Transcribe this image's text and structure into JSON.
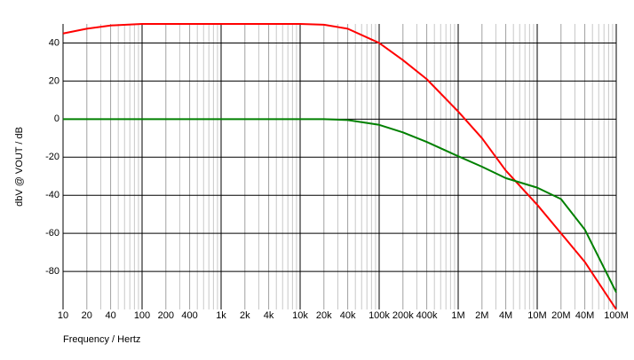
{
  "chart_data": {
    "type": "line",
    "ylabel": "dbV @ VOUT / dB",
    "xlabel": "Frequency / Hertz",
    "xscale": "log",
    "grid": true,
    "xlim": [
      10,
      100000000
    ],
    "ylim": [
      -100,
      50
    ],
    "yticks": [
      40,
      20,
      0,
      -20,
      -40,
      -60,
      -80
    ],
    "xticks": [
      10,
      20,
      40,
      100,
      200,
      400,
      {
        "value": 1000,
        "label": "1k"
      },
      {
        "value": 2000,
        "label": "2k"
      },
      {
        "value": 4000,
        "label": "4k"
      },
      {
        "value": 10000,
        "label": "10k"
      },
      {
        "value": 20000,
        "label": "20k"
      },
      {
        "value": 40000,
        "label": "40k"
      },
      {
        "value": 100000,
        "label": "100k"
      },
      {
        "value": 200000,
        "label": "200k"
      },
      {
        "value": 400000,
        "label": "400k"
      },
      {
        "value": 1000000,
        "label": "1M"
      },
      {
        "value": 2000000,
        "label": "2M"
      },
      {
        "value": 4000000,
        "label": "4M"
      },
      {
        "value": 10000000,
        "label": "10M"
      },
      {
        "value": 20000000,
        "label": "20M"
      },
      {
        "value": 40000000,
        "label": "40M"
      },
      {
        "value": 100000000,
        "label": "100M"
      }
    ],
    "xminor": [
      30,
      50,
      60,
      70,
      80,
      90,
      300,
      500,
      600,
      700,
      800,
      900,
      3000,
      5000,
      6000,
      7000,
      8000,
      9000,
      30000,
      50000,
      60000,
      70000,
      80000,
      90000,
      300000,
      500000,
      600000,
      700000,
      800000,
      900000,
      3000000,
      5000000,
      6000000,
      7000000,
      8000000,
      9000000,
      30000000,
      50000000,
      60000000,
      70000000,
      80000000,
      90000000
    ],
    "x": [
      10,
      20,
      40,
      100,
      1000,
      10000,
      20000,
      40000,
      100000,
      200000,
      400000,
      1000000,
      2000000,
      4000000,
      10000000,
      20000000,
      40000000,
      100000000
    ],
    "series": [
      {
        "color": "#ff0000",
        "values": [
          45,
          47.5,
          49.2,
          50,
          50,
          50,
          49.6,
          47.5,
          40,
          31,
          21,
          4,
          -10,
          -27,
          -45,
          -60,
          -75,
          -100
        ]
      },
      {
        "color": "#008000",
        "values": [
          0,
          0,
          0,
          0,
          0,
          0,
          0,
          -0.5,
          -3,
          -7,
          -12,
          -19.5,
          -25,
          -31,
          -36,
          -42,
          -58,
          -91
        ]
      }
    ]
  }
}
